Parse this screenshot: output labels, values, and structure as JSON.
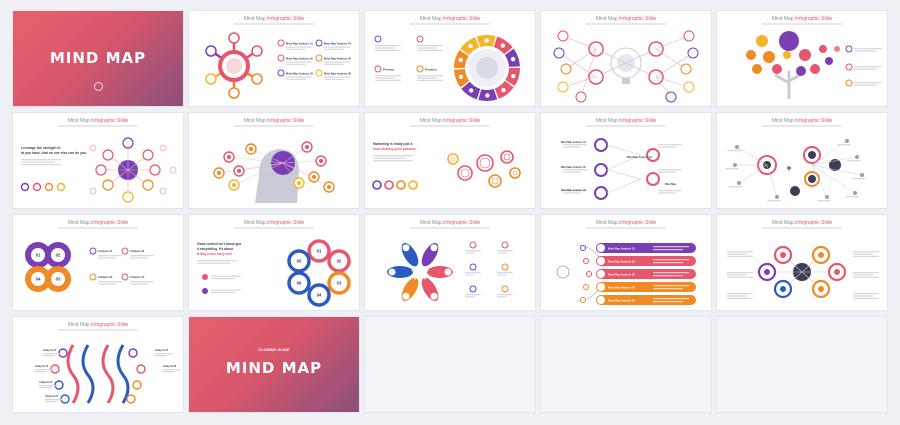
{
  "slides": [
    {
      "type": "cover",
      "title": "MIND MAP"
    },
    {
      "type": "content",
      "title_plain": "Mind Map ",
      "title_accent": "Infographic Slide"
    },
    {
      "type": "content",
      "title_plain": "Mind Map ",
      "title_accent": "Infographic Slide"
    },
    {
      "type": "content",
      "title_plain": "Mind Map ",
      "title_accent": "Infographic Slide"
    },
    {
      "type": "content",
      "title_plain": "Mind Map ",
      "title_accent": "Infographic Slide"
    },
    {
      "type": "content",
      "title_plain": "Mind Map ",
      "title_accent": "Infographic Slide"
    },
    {
      "type": "content",
      "title_plain": "Mind Map ",
      "title_accent": "Infographic Slide"
    },
    {
      "type": "content",
      "title_plain": "Mind Map ",
      "title_accent": "Infographic Slide"
    },
    {
      "type": "content",
      "title_plain": "Mind Map ",
      "title_accent": "Infographic Slide"
    },
    {
      "type": "content",
      "title_plain": "Mind Map ",
      "title_accent": "Infographic Slide"
    },
    {
      "type": "content",
      "title_plain": "Mind Map ",
      "title_accent": "Infographic Slide"
    },
    {
      "type": "content",
      "title_plain": "Mind Map ",
      "title_accent": "Infographic Slide"
    },
    {
      "type": "content",
      "title_plain": "Mind Map ",
      "title_accent": "Infographic Slide"
    },
    {
      "type": "content",
      "title_plain": "Mind Map ",
      "title_accent": "Infographic Slide"
    },
    {
      "type": "content",
      "title_plain": "Mind Map ",
      "title_accent": "Infographic Slide"
    },
    {
      "type": "content",
      "title_plain": "Mind Map ",
      "title_accent": "Infographic Slide"
    },
    {
      "type": "cover",
      "kicker": "CLOSING SLIDE",
      "title": "MIND MAP"
    },
    {
      "type": "empty"
    },
    {
      "type": "empty"
    },
    {
      "type": "empty"
    }
  ],
  "slide2_labels": [
    "Mind Map Analysis 01",
    "Mind Map Analysis 02",
    "Mind Map Analysis 03",
    "Mind Map Analysis 04",
    "Mind Map Analysis 05",
    "Mind Map Analysis 06"
  ],
  "slide3_labels": [
    "Product",
    "Position"
  ],
  "slide6_heading": "Leverage the strength that you have, that no one else can be you.",
  "slide8_heading": "Marketing is really just about sharing your passion.",
  "slide9_labels": [
    "Mind Map Analysis 01",
    "Mind Map Analysis 02",
    "Mind Map Analysis 03",
    "Mind Map Analysis 04"
  ],
  "slide11_numbers": [
    "01",
    "02",
    "04",
    "03"
  ],
  "slide11_labels": [
    "Analysis 01",
    "Analysis 02",
    "Analysis 03",
    "Analysis 04"
  ],
  "slide12_heading": "Good content isn't about good storytelling. It's about telling a true story well.",
  "slide12_numbers": [
    "01",
    "02",
    "03",
    "04",
    "05",
    "06"
  ],
  "slide14_bars": [
    "Mind Map Analysis 01",
    "Mind Map Analysis 02",
    "Mind Map Analysis 03",
    "Mind Map Analysis 04",
    "Mind Map Analysis 05"
  ],
  "slide16_labels": [
    "Analysis 01",
    "Analysis 02",
    "Analysis 03",
    "Analysis 04",
    "Analysis 05",
    "Analysis 06"
  ],
  "colors": {
    "red": "#e6566d",
    "purple": "#7b3fb5",
    "orange": "#f08a24",
    "yellow": "#f5b52a",
    "blue": "#2c5bbf",
    "dark": "#3a3f52"
  }
}
